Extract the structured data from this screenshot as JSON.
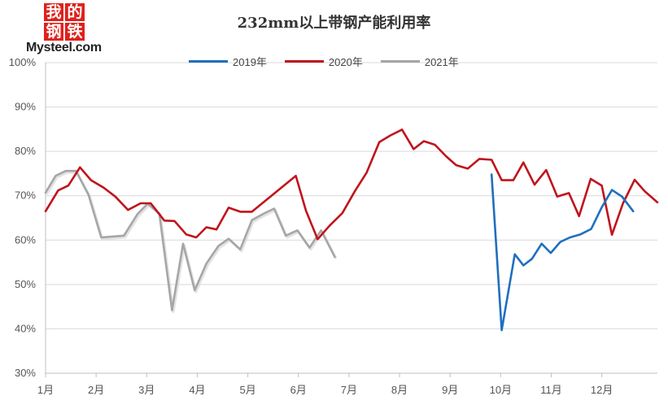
{
  "logo": {
    "chars": [
      "我",
      "的",
      "钢",
      "铁"
    ],
    "text": "Mysteel.com"
  },
  "chart_data": {
    "type": "line",
    "title": "232mm以上带钢产能利用率",
    "xlabel": "",
    "ylabel": "",
    "ylim": [
      30,
      100
    ],
    "y_ticks": [
      "30%",
      "40%",
      "50%",
      "60%",
      "70%",
      "80%",
      "90%",
      "100%"
    ],
    "x_range": [
      1,
      13.1
    ],
    "x_ticks": [
      {
        "pos": 1,
        "label": "1月"
      },
      {
        "pos": 2,
        "label": "2月"
      },
      {
        "pos": 3,
        "label": "3月"
      },
      {
        "pos": 4,
        "label": "4月"
      },
      {
        "pos": 5,
        "label": "5月"
      },
      {
        "pos": 6,
        "label": "6月"
      },
      {
        "pos": 7,
        "label": "7月"
      },
      {
        "pos": 8,
        "label": "8月"
      },
      {
        "pos": 9,
        "label": "9月"
      },
      {
        "pos": 10,
        "label": "10月"
      },
      {
        "pos": 11,
        "label": "11月"
      },
      {
        "pos": 12,
        "label": "12月"
      }
    ],
    "grid": "horizontal",
    "legend_position": "top",
    "series": [
      {
        "name": "2019年",
        "color": "#1f6fbf",
        "points": [
          [
            9.82,
            74.8
          ],
          [
            10.02,
            39.7
          ],
          [
            10.28,
            56.8
          ],
          [
            10.45,
            54.3
          ],
          [
            10.62,
            55.8
          ],
          [
            10.81,
            59.2
          ],
          [
            10.99,
            57.1
          ],
          [
            11.18,
            59.6
          ],
          [
            11.37,
            60.6
          ],
          [
            11.58,
            61.3
          ],
          [
            11.79,
            62.5
          ],
          [
            12.0,
            67.4
          ],
          [
            12.2,
            71.3
          ],
          [
            12.4,
            69.8
          ],
          [
            12.62,
            66.5
          ]
        ]
      },
      {
        "name": "2020年",
        "color": "#c0141c",
        "points": [
          [
            1.0,
            66.5
          ],
          [
            1.25,
            71.2
          ],
          [
            1.45,
            72.3
          ],
          [
            1.68,
            76.4
          ],
          [
            1.9,
            73.5
          ],
          [
            2.15,
            71.8
          ],
          [
            2.38,
            69.8
          ],
          [
            2.63,
            66.8
          ],
          [
            2.88,
            68.3
          ],
          [
            3.08,
            68.3
          ],
          [
            3.35,
            64.4
          ],
          [
            3.55,
            64.3
          ],
          [
            3.78,
            61.3
          ],
          [
            3.98,
            60.6
          ],
          [
            4.18,
            62.9
          ],
          [
            4.38,
            62.4
          ],
          [
            4.62,
            67.3
          ],
          [
            4.85,
            66.4
          ],
          [
            5.08,
            66.4
          ],
          [
            5.95,
            74.5
          ],
          [
            6.15,
            66.6
          ],
          [
            6.38,
            60.2
          ],
          [
            6.62,
            63.3
          ],
          [
            6.87,
            66.1
          ],
          [
            7.12,
            71.1
          ],
          [
            7.35,
            75.2
          ],
          [
            7.6,
            82.1
          ],
          [
            7.82,
            83.6
          ],
          [
            8.05,
            84.9
          ],
          [
            8.28,
            80.5
          ],
          [
            8.48,
            82.3
          ],
          [
            8.7,
            81.5
          ],
          [
            8.92,
            78.9
          ],
          [
            9.12,
            76.9
          ],
          [
            9.35,
            76.1
          ],
          [
            9.58,
            78.3
          ],
          [
            9.82,
            78.1
          ],
          [
            10.02,
            73.5
          ],
          [
            10.25,
            73.5
          ],
          [
            10.45,
            77.5
          ],
          [
            10.67,
            72.5
          ],
          [
            10.9,
            75.8
          ],
          [
            11.12,
            69.8
          ],
          [
            11.35,
            70.6
          ],
          [
            11.55,
            65.4
          ],
          [
            11.78,
            73.8
          ],
          [
            12.0,
            72.3
          ],
          [
            12.2,
            61.2
          ],
          [
            12.42,
            68.3
          ],
          [
            12.65,
            73.6
          ],
          [
            12.85,
            71.0
          ],
          [
            13.1,
            68.5
          ]
        ]
      },
      {
        "name": "2021年",
        "color": "#a6a6a6",
        "points": [
          [
            1.0,
            70.7
          ],
          [
            1.2,
            74.5
          ],
          [
            1.4,
            75.6
          ],
          [
            1.6,
            75.6
          ],
          [
            1.85,
            70.2
          ],
          [
            2.1,
            60.6
          ],
          [
            2.55,
            61.0
          ],
          [
            2.82,
            65.9
          ],
          [
            3.02,
            68.2
          ],
          [
            3.25,
            66.0
          ],
          [
            3.5,
            44.2
          ],
          [
            3.72,
            59.2
          ],
          [
            3.95,
            48.7
          ],
          [
            4.18,
            54.7
          ],
          [
            4.42,
            58.7
          ],
          [
            4.62,
            60.3
          ],
          [
            4.85,
            57.9
          ],
          [
            5.08,
            64.5
          ],
          [
            5.32,
            66.0
          ],
          [
            5.52,
            67.1
          ],
          [
            5.75,
            61.0
          ],
          [
            5.98,
            62.2
          ],
          [
            6.22,
            58.3
          ],
          [
            6.45,
            62.2
          ],
          [
            6.72,
            56.2
          ]
        ]
      }
    ]
  }
}
